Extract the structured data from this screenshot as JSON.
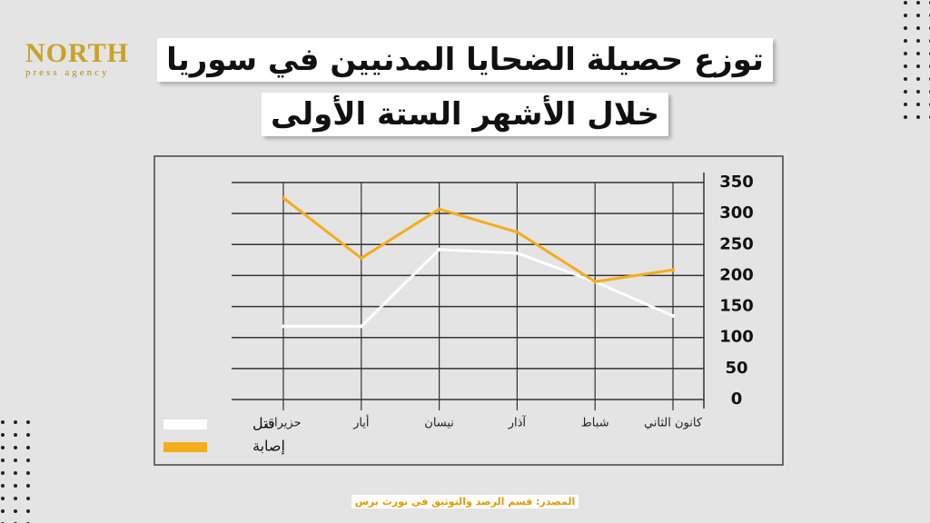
{
  "logo": {
    "name": "NORTH",
    "tagline": "press agency"
  },
  "chart_data": {
    "type": "line",
    "title": "توزع حصيلة الضحايا المدنيين في سوريا",
    "subtitle": "خلال الأشهر الستة الأولى",
    "categories": [
      "حزيران",
      "أيار",
      "نيسان",
      "آذار",
      "شباط",
      "كانون الثاني"
    ],
    "series": [
      {
        "name": "قتل",
        "color": "#ffffff",
        "values": [
          118,
          118,
          242,
          236,
          190,
          135
        ]
      },
      {
        "name": "إصابة",
        "color": "#f5ad1b",
        "values": [
          325,
          228,
          307,
          270,
          190,
          209
        ]
      }
    ],
    "ylim": [
      0,
      350
    ],
    "yticks": [
      0,
      50,
      100,
      150,
      200,
      250,
      300,
      350
    ],
    "grid": true,
    "legend": "bottom-left",
    "source": "المصدر: قسم الرصد والتوثيق في نورث برس"
  }
}
